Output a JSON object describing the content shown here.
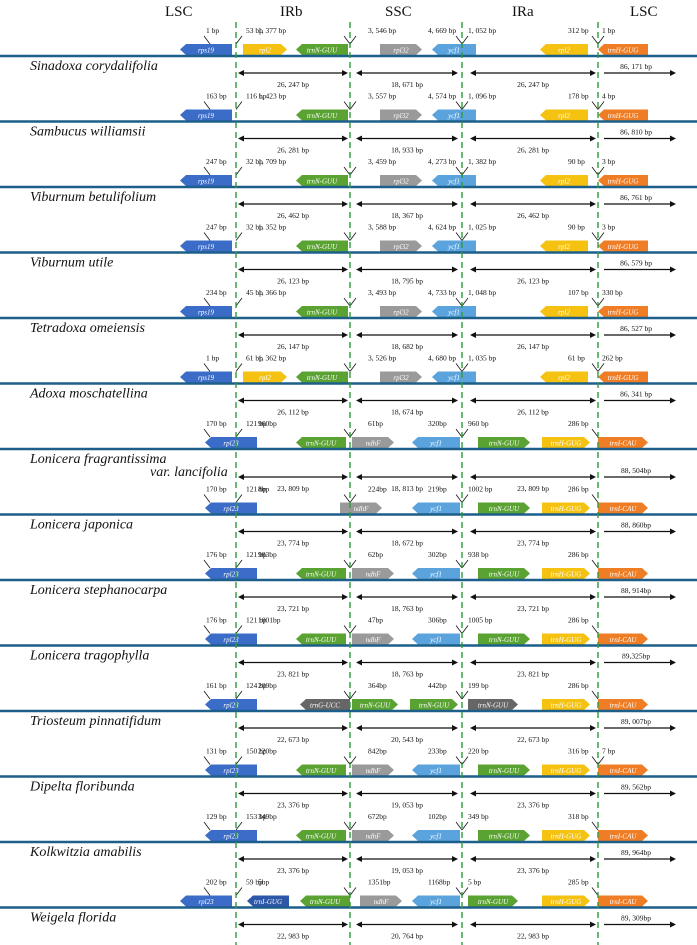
{
  "colors": {
    "track": "#1c5f8a",
    "divider": "#2e9b3a",
    "rps19": "#3b6cc7",
    "rpl23": "#3b6cc7",
    "rpl2": "#f5c211",
    "trnN": "#5aa232",
    "trnH": "#f5c211",
    "trnHtop": "#ef7d25",
    "trnI": "#ef7d25",
    "rpl32": "#9a9a9a",
    "ndhF": "#9a9a9a",
    "ycf1": "#5aa3dd",
    "trnG": "#666666",
    "trnIGUG": "#2d57a8",
    "text": "#111111"
  },
  "headers": [
    "LSC",
    "IRb",
    "SSC",
    "IRa",
    "LSC"
  ],
  "rows": [
    {
      "species": "Sinadoxa corydalifolia",
      "genes": [
        {
          "name": "rps19",
          "color": "rps19",
          "dir": "L"
        },
        {
          "name": "rpl2",
          "color": "rpl2",
          "dir": "R"
        },
        {
          "name": "trnN-GUU",
          "color": "trnN",
          "dir": "L"
        },
        {
          "name": "rpl32",
          "color": "rpl32",
          "dir": "R"
        },
        {
          "name": "ycf1",
          "color": "ycf1",
          "dir": "L"
        },
        {
          "name": "rpl2",
          "color": "rpl2",
          "dir": "L"
        },
        {
          "name": "trnH-GUG",
          "color": "trnHtop",
          "dir": "L"
        }
      ],
      "ann": [
        "1 bp",
        "53 bp",
        "1, 377 bp",
        "3, 546 bp",
        "4, 669 bp",
        "1, 052 bp",
        "312 bp",
        "1 bp"
      ],
      "spans": [
        "26, 247 bp",
        "18, 671 bp",
        "26, 247 bp",
        "86, 171 bp"
      ]
    },
    {
      "species": "Sambucus williamsii",
      "genes": [
        {
          "name": "rps19",
          "color": "rps19",
          "dir": "L"
        },
        {
          "name": "trnN-GUU",
          "color": "trnN",
          "dir": "L"
        },
        {
          "name": "rpl32",
          "color": "rpl32",
          "dir": "R"
        },
        {
          "name": "ycf1",
          "color": "ycf1",
          "dir": "L"
        },
        {
          "name": "rpl2",
          "color": "rpl2",
          "dir": "L"
        },
        {
          "name": "trnH-GUG",
          "color": "trnHtop",
          "dir": "L"
        }
      ],
      "ann": [
        "163 bp",
        "116 bp",
        "1, 423 bp",
        "3, 557 bp",
        "4, 574 bp",
        "1, 096 bp",
        "178 bp",
        "4 bp"
      ],
      "spans": [
        "26, 281 bp",
        "18, 933 bp",
        "26, 281 bp",
        "86, 810 bp"
      ]
    },
    {
      "species": "Viburnum betulifolium",
      "genes": [
        {
          "name": "rps19",
          "color": "rps19",
          "dir": "L"
        },
        {
          "name": "trnN-GUU",
          "color": "trnN",
          "dir": "L"
        },
        {
          "name": "rpl32",
          "color": "rpl32",
          "dir": "R"
        },
        {
          "name": "ycf1",
          "color": "ycf1",
          "dir": "L"
        },
        {
          "name": "rpl2",
          "color": "rpl2",
          "dir": "L"
        },
        {
          "name": "trnH-GUG",
          "color": "trnHtop",
          "dir": "L"
        }
      ],
      "ann": [
        "247 bp",
        "32 bp",
        "1, 709 bp",
        "3, 459 bp",
        "4, 273 bp",
        "1, 382 bp",
        "90 bp",
        "3 bp"
      ],
      "spans": [
        "26, 462 bp",
        "18, 367 bp",
        "26, 462 bp",
        "86, 761 bp"
      ]
    },
    {
      "species": "Viburnum utile",
      "genes": [
        {
          "name": "rps19",
          "color": "rps19",
          "dir": "L"
        },
        {
          "name": "trnN-GUU",
          "color": "trnN",
          "dir": "L"
        },
        {
          "name": "rpl32",
          "color": "rpl32",
          "dir": "R"
        },
        {
          "name": "ycf1",
          "color": "ycf1",
          "dir": "L"
        },
        {
          "name": "rpl2",
          "color": "rpl2",
          "dir": "L"
        },
        {
          "name": "trnH-GUG",
          "color": "trnHtop",
          "dir": "L"
        }
      ],
      "ann": [
        "247 bp",
        "32 bp",
        "1, 352 bp",
        "3, 588 bp",
        "4, 624 bp",
        "1, 025 bp",
        "90 bp",
        "3 bp"
      ],
      "spans": [
        "26, 123 bp",
        "18, 795 bp",
        "26, 123 bp",
        "86, 579 bp"
      ]
    },
    {
      "species": "Tetradoxa omeiensis",
      "genes": [
        {
          "name": "rps19",
          "color": "rps19",
          "dir": "L"
        },
        {
          "name": "trnN-GUU",
          "color": "trnN",
          "dir": "L"
        },
        {
          "name": "rpl32",
          "color": "rpl32",
          "dir": "R"
        },
        {
          "name": "ycf1",
          "color": "ycf1",
          "dir": "L"
        },
        {
          "name": "rpl2",
          "color": "rpl2",
          "dir": "L"
        },
        {
          "name": "trnH-GUG",
          "color": "trnHtop",
          "dir": "L"
        }
      ],
      "ann": [
        "234 bp",
        "45 bp",
        "1, 366 bp",
        "3, 493 bp",
        "4, 733 bp",
        "1, 048 bp",
        "107 bp",
        "330 bp"
      ],
      "spans": [
        "26, 147 bp",
        "18, 682 bp",
        "26, 147 bp",
        "86, 527 bp"
      ]
    },
    {
      "species": "Adoxa moschatellina",
      "genes": [
        {
          "name": "rps19",
          "color": "rps19",
          "dir": "L"
        },
        {
          "name": "rpl2",
          "color": "rpl2",
          "dir": "R"
        },
        {
          "name": "trnN-GUU",
          "color": "trnN",
          "dir": "L"
        },
        {
          "name": "rpl32",
          "color": "rpl32",
          "dir": "R"
        },
        {
          "name": "ycf1",
          "color": "ycf1",
          "dir": "L"
        },
        {
          "name": "rpl2",
          "color": "rpl2",
          "dir": "L"
        },
        {
          "name": "trnH-GUG",
          "color": "trnHtop",
          "dir": "L"
        }
      ],
      "ann": [
        "1 bp",
        "61 bp",
        "1, 362 bp",
        "3, 526 bp",
        "4, 680 bp",
        "1, 035 bp",
        "61 bp",
        "262 bp"
      ],
      "spans": [
        "26, 112 bp",
        "18, 674 bp",
        "26, 112 bp",
        "86, 341 bp"
      ]
    },
    {
      "species": "Lonicera fragrantissima",
      "species2": "var. lancifolia",
      "genes": [
        {
          "name": "rpl23",
          "color": "rpl23",
          "dir": "L"
        },
        {
          "name": "trnN-GUU",
          "color": "trnN",
          "dir": "L"
        },
        {
          "name": "ndhF",
          "color": "ndhF",
          "dir": "R"
        },
        {
          "name": "ycf1",
          "color": "ycf1",
          "dir": "L"
        },
        {
          "name": "trnN-GUU",
          "color": "trnN",
          "dir": "R"
        },
        {
          "name": "trnH-GUG",
          "color": "trnH",
          "dir": "R"
        },
        {
          "name": "trnI-CAU",
          "color": "trnI",
          "dir": "R"
        }
      ],
      "ann": [
        "170 bp",
        "121 bp",
        "960bp",
        "61bp",
        "320bp",
        "960 bp",
        "286 bp",
        ""
      ],
      "spans": [
        "23, 809 bp",
        "18, 813 bp",
        "23, 809 bp",
        "88, 504bp"
      ]
    },
    {
      "species": "Lonicera japonica",
      "genes": [
        {
          "name": "rpl23",
          "color": "rpl23",
          "dir": "L"
        },
        {
          "name": "ndhF",
          "color": "ndhF",
          "dir": "R"
        },
        {
          "name": "ycf1",
          "color": "ycf1",
          "dir": "L"
        },
        {
          "name": "trnN-GUU",
          "color": "trnN",
          "dir": "R"
        },
        {
          "name": "trnH-GUG",
          "color": "trnH",
          "dir": "R"
        },
        {
          "name": "trnI-CAU",
          "color": "trnI",
          "dir": "R"
        }
      ],
      "ann": [
        "170 bp",
        "121 bp",
        "8bp",
        "224bp",
        "219bp",
        "1002 bp",
        "286 bp",
        ""
      ],
      "spans": [
        "23, 774 bp",
        "18, 672 bp",
        "23, 774 bp",
        "88, 860bp"
      ]
    },
    {
      "species": "Lonicera stephanocarpa",
      "genes": [
        {
          "name": "rpl23",
          "color": "rpl23",
          "dir": "L"
        },
        {
          "name": "trnN-GUU",
          "color": "trnN",
          "dir": "L"
        },
        {
          "name": "ndhF",
          "color": "ndhF",
          "dir": "R"
        },
        {
          "name": "ycf1",
          "color": "ycf1",
          "dir": "L"
        },
        {
          "name": "trnN-GUU",
          "color": "trnN",
          "dir": "R"
        },
        {
          "name": "trnH-GUG",
          "color": "trnH",
          "dir": "R"
        },
        {
          "name": "trnI-CAU",
          "color": "trnI",
          "dir": "R"
        }
      ],
      "ann": [
        "176 bp",
        "121 bp",
        "983bp",
        "62bp",
        "302bp",
        "938 bp",
        "286 bp",
        ""
      ],
      "spans": [
        "23, 721 bp",
        "18, 763 bp",
        "23, 721 bp",
        "88, 914bp"
      ]
    },
    {
      "species": "Lonicera tragophylla",
      "genes": [
        {
          "name": "rpl23",
          "color": "rpl23",
          "dir": "L"
        },
        {
          "name": "trnN-GUU",
          "color": "trnN",
          "dir": "L"
        },
        {
          "name": "ndhF",
          "color": "ndhF",
          "dir": "R"
        },
        {
          "name": "ycf1",
          "color": "ycf1",
          "dir": "L"
        },
        {
          "name": "trnN-GUU",
          "color": "trnN",
          "dir": "R"
        },
        {
          "name": "trnH-GUG",
          "color": "trnH",
          "dir": "R"
        },
        {
          "name": "trnI-CAU",
          "color": "trnI",
          "dir": "R"
        }
      ],
      "ann": [
        "176 bp",
        "121 bp",
        "1001bp",
        "47bp",
        "306bp",
        "1005 bp",
        "286 bp",
        ""
      ],
      "spans": [
        "23, 821 bp",
        "18, 763 bp",
        "23, 821 bp",
        "89,325bp"
      ]
    },
    {
      "species": "Triosteum pinnatifidum",
      "genes": [
        {
          "name": "rpl23",
          "color": "rpl23",
          "dir": "L"
        },
        {
          "name": "trnG-UCC",
          "color": "trnG",
          "dir": "L"
        },
        {
          "name": "trnN-GUU",
          "color": "trnN",
          "dir": "R"
        },
        {
          "name": "trnN-GUU",
          "color": "trnN",
          "dir": "R"
        },
        {
          "name": "trnN-GUU",
          "color": "trnG",
          "dir": "R"
        },
        {
          "name": "trnH-GUG",
          "color": "trnH",
          "dir": "R"
        },
        {
          "name": "trnI-CAU",
          "color": "trnI",
          "dir": "R"
        }
      ],
      "ann": [
        "161 bp",
        "124 bp",
        "209bp",
        "364bp",
        "442bp",
        "199 bp",
        "286 bp",
        ""
      ],
      "spans": [
        "22, 673 bp",
        "20, 543 bp",
        "22, 673 bp",
        "89, 007bp"
      ]
    },
    {
      "species": "Dipelta floribunda",
      "genes": [
        {
          "name": "rpl23",
          "color": "rpl23",
          "dir": "L"
        },
        {
          "name": "trnN-GUU",
          "color": "trnN",
          "dir": "L"
        },
        {
          "name": "ndhF",
          "color": "ndhF",
          "dir": "R"
        },
        {
          "name": "ycf1",
          "color": "ycf1",
          "dir": "L"
        },
        {
          "name": "trnN-GUU",
          "color": "trnN",
          "dir": "R"
        },
        {
          "name": "trnH-GUG",
          "color": "trnH",
          "dir": "R"
        },
        {
          "name": "trnI-CAU",
          "color": "trnI",
          "dir": "R"
        }
      ],
      "ann": [
        "131 bp",
        "150 bp",
        "220bp",
        "842bp",
        "233bp",
        "220 bp",
        "316 bp",
        "7 bp"
      ],
      "spans": [
        "23, 376 bp",
        "19, 053 bp",
        "23, 376 bp",
        "89, 562bp"
      ]
    },
    {
      "species": "Kolkwitzia amabilis",
      "genes": [
        {
          "name": "rpl23",
          "color": "rpl23",
          "dir": "L"
        },
        {
          "name": "trnN-GUU",
          "color": "trnN",
          "dir": "L"
        },
        {
          "name": "ndhF",
          "color": "ndhF",
          "dir": "R"
        },
        {
          "name": "ycf1",
          "color": "ycf1",
          "dir": "L"
        },
        {
          "name": "trnN-GUU",
          "color": "trnN",
          "dir": "R"
        },
        {
          "name": "trnH-GUG",
          "color": "trnH",
          "dir": "R"
        },
        {
          "name": "trnI-CAU",
          "color": "trnI",
          "dir": "R"
        }
      ],
      "ann": [
        "129 bp",
        "153 bp",
        "349bp",
        "672bp",
        "102bp",
        "349 bp",
        "318 bp",
        ""
      ],
      "spans": [
        "23, 376 bp",
        "19, 053 bp",
        "23, 376 bp",
        "89, 964bp"
      ]
    },
    {
      "species": "Weigela florida",
      "genes": [
        {
          "name": "rpl23",
          "color": "rpl23",
          "dir": "L"
        },
        {
          "name": "trnI-GUG",
          "color": "trnIGUG",
          "dir": "L"
        },
        {
          "name": "trnN-GUU",
          "color": "trnN",
          "dir": "L"
        },
        {
          "name": "ndhF",
          "color": "ndhF",
          "dir": "R"
        },
        {
          "name": "ycf1",
          "color": "ycf1",
          "dir": "L"
        },
        {
          "name": "trnN-GUU",
          "color": "trnN",
          "dir": "R"
        },
        {
          "name": "trnH-GUG",
          "color": "trnH",
          "dir": "R"
        },
        {
          "name": "trnI-CAU",
          "color": "trnI",
          "dir": "R"
        }
      ],
      "ann": [
        "202 bp",
        "59 bp",
        "5bp",
        "1351bp",
        "1168bp",
        "5 bp",
        "285 bp",
        ""
      ],
      "spans": [
        "22, 983 bp",
        "20, 764 bp",
        "22, 983 bp",
        "89, 309bp"
      ]
    }
  ]
}
